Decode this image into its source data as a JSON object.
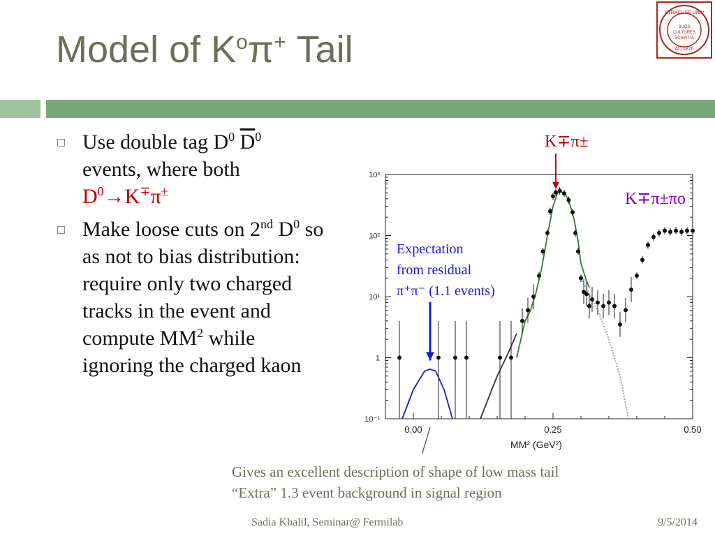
{
  "title": {
    "main": "Model of K",
    "sup1": "o",
    "pi": "π",
    "sup2": "+",
    "tail": " Tail"
  },
  "logo": {
    "text": "SYRACUSE UNIVERSITY · FOUNDED AD 1870 · SUOS CULTORES SCIENTIA CORONAT"
  },
  "bullets": [
    {
      "l1": "Use double tag D",
      "l1s": "0",
      "l1b": "D",
      "l1bs": "0",
      "l2": "events, where both",
      "l3a": "D",
      "l3s": "0",
      "l3b": "→K",
      "l3s2": "∓",
      "l3c": "π",
      "l3s3": "±"
    },
    {
      "a": "Make loose cuts on 2",
      "as": "nd",
      "b": "D",
      "bs": "0",
      "c": " so as not to bias distribution: require only two charged tracks in the event and compute MM",
      "cs": "2",
      "d": " while ignoring the charged kaon"
    }
  ],
  "annotations": {
    "kpi": "K∓π±",
    "kpipi": "K∓π±πo",
    "expect1": "Expectation",
    "expect2": "from residual",
    "expect3": "π⁺π⁻ (1.1 events)"
  },
  "caption": {
    "line1": "Gives an excellent description of shape of low mass tail",
    "line2": "“Extra” 1.3 event background in signal region"
  },
  "footer": {
    "center": "Sadia Khalil, Seminar@ Fermilab",
    "date": "9/5/2014"
  },
  "colors": {
    "accent_band": "#7aa77a",
    "title": "#6b6f5a",
    "red": "#c00000",
    "purple": "#7a00b8",
    "blue": "#1a1ad0",
    "fit": "#2e7d32"
  },
  "chart_data": {
    "type": "scatter",
    "xlabel": "MM² (GeV²)",
    "ylabel": "",
    "yscale": "log",
    "xlim": [
      -0.05,
      0.5
    ],
    "ylim": [
      0.1,
      1000
    ],
    "xticks": [
      "0.00",
      "0.25",
      "0.50"
    ],
    "yticks": [
      "10⁻¹",
      "1",
      "10¹",
      "10²",
      "10³"
    ],
    "series": [
      {
        "type": "scatter",
        "points": [
          [
            -0.025,
            1
          ],
          [
            0.045,
            1
          ],
          [
            0.075,
            1
          ],
          [
            0.095,
            1
          ],
          [
            0.155,
            1
          ],
          [
            0.175,
            1
          ],
          [
            0.195,
            4
          ],
          [
            0.205,
            6
          ],
          [
            0.215,
            10
          ],
          [
            0.225,
            22
          ],
          [
            0.232,
            55
          ],
          [
            0.24,
            110
          ],
          [
            0.245,
            250
          ],
          [
            0.25,
            440
          ],
          [
            0.255,
            510
          ],
          [
            0.262,
            540
          ],
          [
            0.27,
            490
          ],
          [
            0.278,
            380
          ],
          [
            0.285,
            240
          ],
          [
            0.29,
            110
          ],
          [
            0.295,
            55
          ],
          [
            0.3,
            20
          ],
          [
            0.305,
            12
          ],
          [
            0.31,
            11
          ],
          [
            0.315,
            7
          ],
          [
            0.32,
            9
          ],
          [
            0.33,
            8
          ],
          [
            0.34,
            7
          ],
          [
            0.35,
            8
          ],
          [
            0.36,
            7
          ],
          [
            0.37,
            3.5
          ],
          [
            0.38,
            6
          ],
          [
            0.39,
            13
          ],
          [
            0.4,
            22
          ],
          [
            0.41,
            40
          ],
          [
            0.42,
            70
          ],
          [
            0.43,
            95
          ],
          [
            0.44,
            110
          ],
          [
            0.45,
            120
          ],
          [
            0.46,
            115
          ],
          [
            0.47,
            120
          ],
          [
            0.48,
            115
          ],
          [
            0.49,
            120
          ],
          [
            0.5,
            120
          ]
        ]
      },
      {
        "type": "line",
        "color": "#1a1ad0",
        "points": [
          [
            -0.02,
            0.1
          ],
          [
            0,
            0.3
          ],
          [
            0.02,
            0.6
          ],
          [
            0.03,
            0.65
          ],
          [
            0.04,
            0.6
          ],
          [
            0.055,
            0.3
          ],
          [
            0.07,
            0.1
          ]
        ]
      },
      {
        "type": "line",
        "color": "#2e7d32",
        "points": [
          [
            0.185,
            1
          ],
          [
            0.2,
            4
          ],
          [
            0.21,
            6
          ],
          [
            0.22,
            12
          ],
          [
            0.23,
            30
          ],
          [
            0.24,
            100
          ],
          [
            0.25,
            300
          ],
          [
            0.258,
            500
          ],
          [
            0.265,
            520
          ],
          [
            0.272,
            480
          ],
          [
            0.28,
            330
          ],
          [
            0.288,
            180
          ],
          [
            0.295,
            80
          ],
          [
            0.3,
            35
          ],
          [
            0.31,
            18
          ],
          [
            0.315,
            14
          ]
        ]
      },
      {
        "type": "line",
        "color": "#333333",
        "points": [
          [
            0.12,
            0.1
          ],
          [
            0.15,
            0.5
          ],
          [
            0.17,
            1.2
          ],
          [
            0.185,
            2.5
          ]
        ]
      },
      {
        "type": "line",
        "color": "#999999",
        "dash": true,
        "points": [
          [
            0.3,
            20
          ],
          [
            0.33,
            6
          ],
          [
            0.35,
            2
          ],
          [
            0.37,
            0.5
          ],
          [
            0.385,
            0.1
          ]
        ]
      }
    ]
  }
}
